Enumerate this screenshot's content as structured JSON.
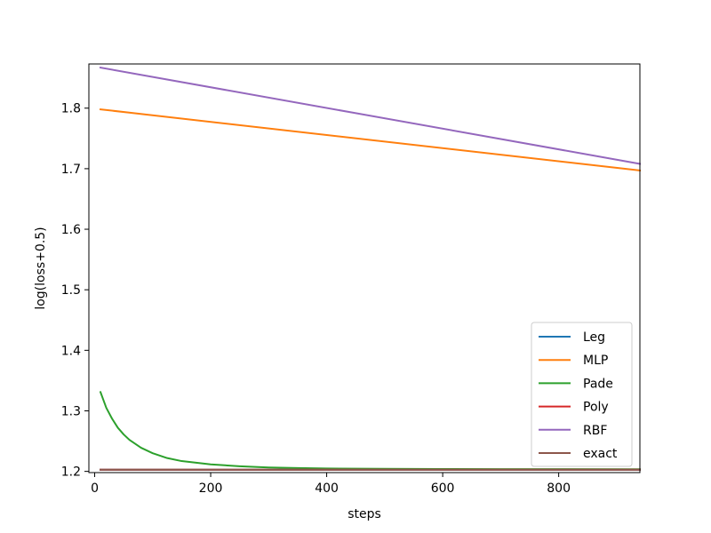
{
  "chart_data": {
    "type": "line",
    "title": "",
    "xlabel": "steps",
    "ylabel": "log(loss+0.5)",
    "xlim": [
      -10,
      940
    ],
    "ylim": [
      1.198,
      1.873
    ],
    "xticks": [
      0,
      200,
      400,
      600,
      800
    ],
    "yticks": [
      1.2,
      1.3,
      1.4,
      1.5,
      1.6,
      1.7,
      1.8
    ],
    "xtick_labels": [
      "0",
      "200",
      "400",
      "600",
      "800"
    ],
    "ytick_labels": [
      "1.2",
      "1.3",
      "1.4",
      "1.5",
      "1.6",
      "1.7",
      "1.8"
    ],
    "grid": false,
    "legend_position": "lower-right",
    "series": [
      {
        "name": "Leg",
        "color": "#1f77b4",
        "x": [
          10,
          940
        ],
        "y": [
          1.2027,
          1.2027
        ]
      },
      {
        "name": "MLP",
        "color": "#ff7f0e",
        "x": [
          10,
          940
        ],
        "y": [
          1.798,
          1.697
        ]
      },
      {
        "name": "Pade",
        "color": "#2ca02c",
        "x": [
          10,
          20,
          30,
          40,
          50,
          60,
          80,
          100,
          125,
          150,
          200,
          250,
          300,
          350,
          400,
          500,
          600,
          700,
          800,
          940
        ],
        "y": [
          1.331,
          1.305,
          1.287,
          1.272,
          1.261,
          1.252,
          1.239,
          1.23,
          1.222,
          1.217,
          1.2115,
          1.2085,
          1.2065,
          1.2055,
          1.2048,
          1.2042,
          1.2039,
          1.2037,
          1.2036,
          1.2035
        ]
      },
      {
        "name": "Poly",
        "color": "#d62728",
        "x": [
          10,
          940
        ],
        "y": [
          1.2027,
          1.2027
        ]
      },
      {
        "name": "RBF",
        "color": "#9467bd",
        "x": [
          10,
          940
        ],
        "y": [
          1.867,
          1.708
        ]
      },
      {
        "name": "exact",
        "color": "#8c564b",
        "x": [
          10,
          940
        ],
        "y": [
          1.2027,
          1.2027
        ]
      }
    ]
  }
}
